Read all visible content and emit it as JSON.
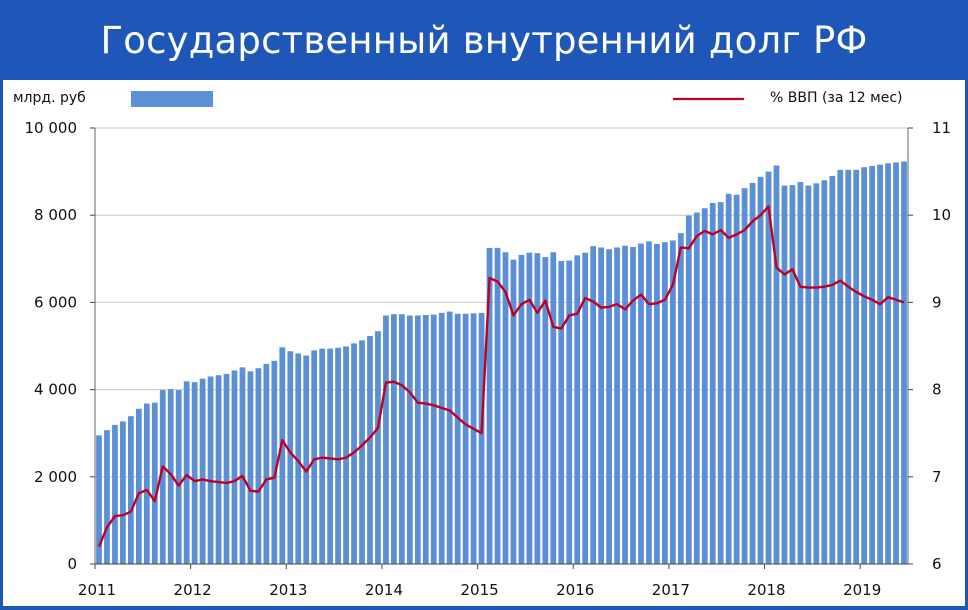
{
  "title": "Государственный внутренний долг РФ",
  "chart_data": {
    "type": "bar+line",
    "legend": {
      "bar_label": "млрд. руб",
      "line_label": "% ВВП (за 12 мес)",
      "placement": "top"
    },
    "x_tick_labels": [
      "2011",
      "2012",
      "2013",
      "2014",
      "2015",
      "2016",
      "2017",
      "2018",
      "2019"
    ],
    "y_left": {
      "lim": [
        0,
        10000
      ],
      "ticks": [
        0,
        2000,
        4000,
        6000,
        8000,
        10000
      ],
      "tick_labels": [
        "0",
        "2 000",
        "4 000",
        "6 000",
        "8 000",
        "10 000"
      ]
    },
    "y_right": {
      "lim": [
        6,
        11
      ],
      "ticks": [
        6,
        7,
        8,
        9,
        10,
        11
      ],
      "tick_labels": [
        "6",
        "7",
        "8",
        "9",
        "10",
        "11"
      ]
    },
    "grid": "horizontal",
    "colors": {
      "bar": "#5b8fd6",
      "line": "#c00020",
      "grid": "#c8c8c8"
    },
    "bar_series": {
      "name": "млрд. руб",
      "values": [
        2950,
        3070,
        3190,
        3270,
        3390,
        3560,
        3680,
        3700,
        3990,
        4010,
        3990,
        4190,
        4170,
        4250,
        4300,
        4330,
        4360,
        4440,
        4510,
        4420,
        4490,
        4590,
        4660,
        4970,
        4880,
        4830,
        4780,
        4900,
        4940,
        4940,
        4960,
        4990,
        5060,
        5130,
        5230,
        5340,
        5700,
        5730,
        5730,
        5700,
        5700,
        5710,
        5720,
        5760,
        5790,
        5740,
        5740,
        5750,
        5760,
        7250,
        7250,
        7150,
        6980,
        7090,
        7140,
        7130,
        7040,
        7150,
        6950,
        6960,
        7080,
        7140,
        7290,
        7260,
        7220,
        7260,
        7300,
        7270,
        7350,
        7400,
        7340,
        7380,
        7420,
        7590,
        7990,
        8060,
        8160,
        8280,
        8300,
        8490,
        8470,
        8620,
        8740,
        8880,
        9000,
        9140,
        8680,
        8690,
        8760,
        8680,
        8730,
        8800,
        8900,
        9040,
        9040,
        9040,
        9100,
        9130,
        9160,
        9190,
        9210,
        9230
      ]
    },
    "line_series": {
      "name": "% ВВП (за 12 мес)",
      "values": [
        6.2,
        6.42,
        6.55,
        6.56,
        6.6,
        6.81,
        6.85,
        6.72,
        7.12,
        7.03,
        6.9,
        7.02,
        6.95,
        6.97,
        6.95,
        6.94,
        6.93,
        6.95,
        7.01,
        6.84,
        6.83,
        6.97,
        6.99,
        7.42,
        7.28,
        7.18,
        7.06,
        7.2,
        7.22,
        7.21,
        7.2,
        7.22,
        7.28,
        7.36,
        7.45,
        7.56,
        8.08,
        8.09,
        8.05,
        7.97,
        7.85,
        7.84,
        7.82,
        7.79,
        7.76,
        7.68,
        7.6,
        7.55,
        7.5,
        9.28,
        9.24,
        9.12,
        8.85,
        8.98,
        9.03,
        8.88,
        9.02,
        8.72,
        8.7,
        8.85,
        8.87,
        9.05,
        9.01,
        8.94,
        8.95,
        8.98,
        8.92,
        9.02,
        9.09,
        8.98,
        8.99,
        9.03,
        9.2,
        9.63,
        9.62,
        9.76,
        9.82,
        9.78,
        9.83,
        9.74,
        9.78,
        9.83,
        9.93,
        10.0,
        10.1,
        9.4,
        9.32,
        9.38,
        9.18,
        9.17,
        9.17,
        9.18,
        9.2,
        9.25,
        9.18,
        9.12,
        9.07,
        9.03,
        8.98,
        9.06,
        9.03,
        9.0
      ]
    }
  }
}
